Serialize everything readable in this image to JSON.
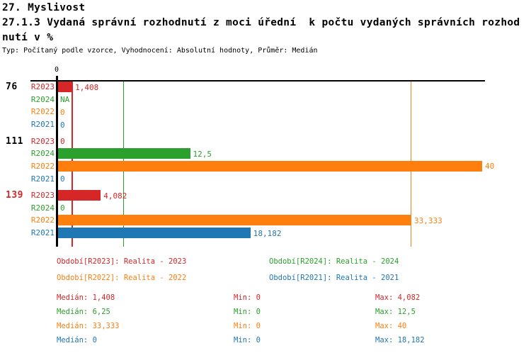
{
  "header": {
    "line1": "27. Myslivost",
    "line2": "27.1.3 Vydaná správní rozhodnutí z moci úřední  k počtu vydaných správních rozhod",
    "line3": "nutí v %",
    "subtitle": "Typ: Počítaný podle vzorce, Vyhodnocení: Absolutní hodnoty, Průměr: Medián"
  },
  "colors": {
    "r2023": "#d62728",
    "r2024": "#2ca02c",
    "r2022": "#ff7f0e",
    "r2021": "#1f77b4",
    "axis": "#000000"
  },
  "chart_data": {
    "type": "bar",
    "orientation": "horizontal",
    "title": "27.1.3 Vydaná správní rozhodnutí z moci úřední k počtu vydaných správních rozhodnutí v %",
    "xlim": [
      0,
      40
    ],
    "x_tick_labels": [
      "0"
    ],
    "grid": "off",
    "groups": [
      "76",
      "111",
      "139"
    ],
    "group_label_colors": [
      "#000000",
      "#000000",
      "#d62728"
    ],
    "series": [
      {
        "name": "R2023",
        "color": "#d62728",
        "values": [
          1.408,
          0,
          4.082
        ],
        "displays": [
          "1,408",
          "0",
          "4,082"
        ]
      },
      {
        "name": "R2024",
        "color": "#2ca02c",
        "values": [
          null,
          12.5,
          0
        ],
        "displays": [
          "NA",
          "12,5",
          "0"
        ]
      },
      {
        "name": "R2022",
        "color": "#ff7f0e",
        "values": [
          0,
          40,
          33.333
        ],
        "displays": [
          "0",
          "40",
          "33,333"
        ]
      },
      {
        "name": "R2021",
        "color": "#1f77b4",
        "values": [
          0,
          0,
          18.182
        ],
        "displays": [
          "0",
          "0",
          "18,182"
        ]
      }
    ],
    "median_lines": [
      {
        "series": "R2023",
        "value": 1.408,
        "color": "#d62728"
      },
      {
        "series": "R2024",
        "value": 6.25,
        "color": "#2ca02c"
      },
      {
        "series": "R2022",
        "value": 33.333,
        "color": "#ff7f0e"
      },
      {
        "series": "R2021",
        "value": 0,
        "color": "#1f77b4"
      }
    ]
  },
  "legend": {
    "items": [
      {
        "text": "Období[R2023]: Realita - 2023",
        "color": "#d62728"
      },
      {
        "text": "Období[R2024]: Realita - 2024",
        "color": "#2ca02c"
      },
      {
        "text": "Období[R2022]: Realita - 2022",
        "color": "#ff7f0e"
      },
      {
        "text": "Období[R2021]: Realita - 2021",
        "color": "#1f77b4"
      }
    ]
  },
  "stats": {
    "rows": [
      {
        "median": "Medián: 1,408",
        "min": "Min: 0",
        "max": "Max: 4,082",
        "color": "#d62728"
      },
      {
        "median": "Medián: 6,25",
        "min": "Min: 0",
        "max": "Max: 12,5",
        "color": "#2ca02c"
      },
      {
        "median": "Medián: 33,333",
        "min": "Min: 0",
        "max": "Max: 40",
        "color": "#ff7f0e"
      },
      {
        "median": "Medián: 0",
        "min": "Min: 0",
        "max": "Max: 18,182",
        "color": "#1f77b4"
      }
    ]
  }
}
